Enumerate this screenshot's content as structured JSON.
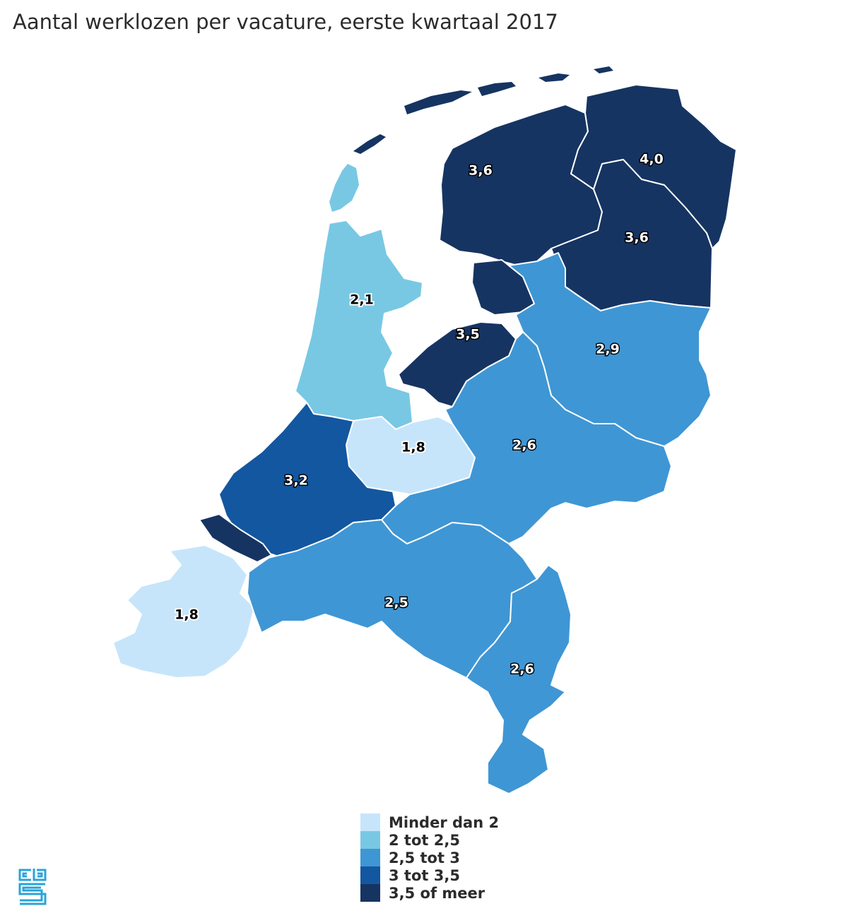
{
  "title": "Aantal werklozen per vacature, eerste kwartaal 2017",
  "colors": {
    "minder_dan_2": "#c6e5fb",
    "2_tot_2_5": "#78c8e4",
    "2_5_tot_3": "#3f96d4",
    "3_tot_3_5": "#1357a0",
    "3_5_of_meer": "#163462"
  },
  "regions": [
    {
      "label": "3,6",
      "class": "3,5 of meer"
    },
    {
      "label": "4,0",
      "class": "3,5 of meer"
    },
    {
      "label": "3,6",
      "class": "3,5 of meer"
    },
    {
      "label": "2,1",
      "class": "2 tot 2,5"
    },
    {
      "label": "3,5",
      "class": "3,5 of meer"
    },
    {
      "label": "2,9",
      "class": "2,5 tot 3"
    },
    {
      "label": "1,8",
      "class": "Minder dan 2"
    },
    {
      "label": "2,6",
      "class": "2,5 tot 3"
    },
    {
      "label": "3,2",
      "class": "3 tot 3,5"
    },
    {
      "label": "1,8",
      "class": "Minder dan 2"
    },
    {
      "label": "2,5",
      "class": "2,5 tot 3"
    },
    {
      "label": "2,6",
      "class": "2,5 tot 3"
    }
  ],
  "legend": [
    {
      "label": "Minder dan 2",
      "color": "#c6e5fb"
    },
    {
      "label": "2 tot 2,5",
      "color": "#78c8e4"
    },
    {
      "label": "2,5 tot 3",
      "color": "#3f96d4"
    },
    {
      "label": "3 tot 3,5",
      "color": "#1357a0"
    },
    {
      "label": "3,5 of meer",
      "color": "#163462"
    }
  ],
  "logo": {
    "icon": "cbs-logo-icon",
    "text": "cbs"
  }
}
